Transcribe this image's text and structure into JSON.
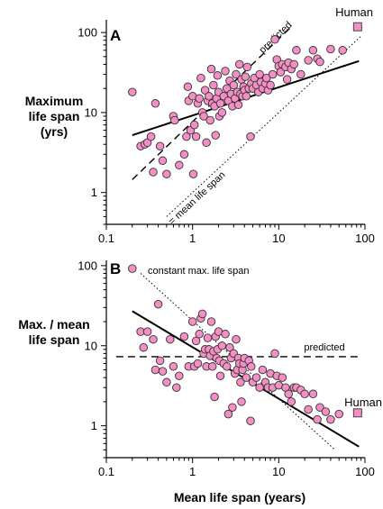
{
  "chart_data": [
    {
      "panel": "A",
      "type": "scatter",
      "xlabel": "",
      "ylabel_lines": [
        "Maximum",
        "life span",
        "(yrs)"
      ],
      "x_scale": "log",
      "y_scale": "log",
      "xlim": [
        0.1,
        100
      ],
      "ylim": [
        0.4,
        130
      ],
      "x_ticks": [
        {
          "value": 0.1,
          "label": "0.1"
        },
        {
          "value": 1,
          "label": "1"
        },
        {
          "value": 10,
          "label": "10"
        },
        {
          "value": 100,
          "label": "100"
        }
      ],
      "y_ticks": [
        {
          "value": 1,
          "label": "1"
        },
        {
          "value": 10,
          "label": "10"
        },
        {
          "value": 100,
          "label": "100"
        }
      ],
      "points": [
        [
          0.2,
          18
        ],
        [
          0.25,
          3.8
        ],
        [
          0.28,
          4
        ],
        [
          0.3,
          4.2
        ],
        [
          0.33,
          5
        ],
        [
          0.35,
          1.8
        ],
        [
          0.37,
          13
        ],
        [
          0.42,
          3.8
        ],
        [
          0.45,
          2.5
        ],
        [
          0.5,
          1.7
        ],
        [
          0.6,
          9
        ],
        [
          0.62,
          8
        ],
        [
          0.7,
          2.2
        ],
        [
          0.8,
          3
        ],
        [
          0.85,
          5
        ],
        [
          0.88,
          21
        ],
        [
          0.9,
          14
        ],
        [
          0.95,
          6
        ],
        [
          1,
          16
        ],
        [
          1.02,
          1.7
        ],
        [
          1.05,
          7
        ],
        [
          1.1,
          5
        ],
        [
          1.15,
          13
        ],
        [
          1.2,
          15
        ],
        [
          1.25,
          27
        ],
        [
          1.3,
          10
        ],
        [
          1.35,
          9
        ],
        [
          1.4,
          19
        ],
        [
          1.45,
          4.2
        ],
        [
          1.5,
          14
        ],
        [
          1.55,
          16
        ],
        [
          1.6,
          8
        ],
        [
          1.65,
          35
        ],
        [
          1.7,
          13
        ],
        [
          1.75,
          22
        ],
        [
          1.8,
          12
        ],
        [
          1.85,
          5.2
        ],
        [
          1.9,
          15
        ],
        [
          1.95,
          29
        ],
        [
          2,
          18
        ],
        [
          2.05,
          9
        ],
        [
          2.1,
          13
        ],
        [
          2.2,
          10
        ],
        [
          2.3,
          16
        ],
        [
          2.4,
          33
        ],
        [
          2.5,
          20
        ],
        [
          2.6,
          14
        ],
        [
          2.7,
          25
        ],
        [
          2.8,
          17
        ],
        [
          2.9,
          12
        ],
        [
          3,
          22
        ],
        [
          3.1,
          15
        ],
        [
          3.2,
          30
        ],
        [
          3.3,
          18
        ],
        [
          3.4,
          12.5
        ],
        [
          3.5,
          40
        ],
        [
          3.6,
          17
        ],
        [
          3.7,
          26
        ],
        [
          3.8,
          16
        ],
        [
          3.9,
          21
        ],
        [
          4,
          19
        ],
        [
          4.1,
          28
        ],
        [
          4.2,
          16
        ],
        [
          4.3,
          37
        ],
        [
          4.5,
          20
        ],
        [
          4.7,
          5
        ],
        [
          4.8,
          23
        ],
        [
          5,
          20
        ],
        [
          5.2,
          27
        ],
        [
          5.5,
          22
        ],
        [
          5.8,
          18
        ],
        [
          6,
          30
        ],
        [
          6.2,
          24
        ],
        [
          6.5,
          20
        ],
        [
          7,
          23
        ],
        [
          7.2,
          27
        ],
        [
          7.5,
          19
        ],
        [
          8,
          22
        ],
        [
          8.5,
          30
        ],
        [
          9,
          82
        ],
        [
          9.5,
          46
        ],
        [
          10,
          38
        ],
        [
          10.5,
          32
        ],
        [
          11,
          40
        ],
        [
          12,
          37
        ],
        [
          12.5,
          26
        ],
        [
          13,
          42
        ],
        [
          14,
          35
        ],
        [
          15,
          40
        ],
        [
          16,
          60
        ],
        [
          18,
          30
        ],
        [
          22,
          45
        ],
        [
          25,
          60
        ],
        [
          28,
          47
        ],
        [
          30,
          43
        ],
        [
          40,
          62
        ],
        [
          55,
          60
        ]
      ],
      "human": {
        "x": 82,
        "y": 118,
        "label": "Human"
      },
      "lines": [
        {
          "name": "fit",
          "style": "solid",
          "from": [
            0.2,
            5.2
          ],
          "to": [
            85,
            44
          ]
        },
        {
          "name": "predicted",
          "style": "dashed",
          "from": [
            0.2,
            1.45
          ],
          "to": [
            14,
            118
          ],
          "label": "predicted"
        },
        {
          "name": "mean-equals-max",
          "style": "dotted",
          "from": [
            0.5,
            0.5
          ],
          "to": [
            90,
            90
          ],
          "label": "= mean life span"
        }
      ]
    },
    {
      "panel": "B",
      "type": "scatter",
      "xlabel": "Mean life span (years)",
      "ylabel_lines": [
        "Max. / mean",
        "life span"
      ],
      "x_scale": "log",
      "y_scale": "log",
      "xlim": [
        0.1,
        100
      ],
      "ylim": [
        0.4,
        105
      ],
      "x_ticks": [
        {
          "value": 0.1,
          "label": "0.1"
        },
        {
          "value": 1,
          "label": "1"
        },
        {
          "value": 10,
          "label": "10"
        },
        {
          "value": 100,
          "label": "100"
        }
      ],
      "y_ticks": [
        {
          "value": 1,
          "label": "1"
        },
        {
          "value": 10,
          "label": "10"
        },
        {
          "value": 100,
          "label": "100"
        }
      ],
      "points": [
        [
          0.2,
          92
        ],
        [
          0.25,
          15
        ],
        [
          0.27,
          9.5
        ],
        [
          0.3,
          15
        ],
        [
          0.35,
          12
        ],
        [
          0.37,
          5
        ],
        [
          0.4,
          33
        ],
        [
          0.42,
          6.5
        ],
        [
          0.45,
          4.8
        ],
        [
          0.5,
          3.5
        ],
        [
          0.55,
          12
        ],
        [
          0.6,
          5.5
        ],
        [
          0.65,
          3
        ],
        [
          0.7,
          4.2
        ],
        [
          0.8,
          13
        ],
        [
          0.9,
          5.5
        ],
        [
          1,
          20
        ],
        [
          1.05,
          5.5
        ],
        [
          1.1,
          11.5
        ],
        [
          1.15,
          6
        ],
        [
          1.2,
          14
        ],
        [
          1.25,
          22
        ],
        [
          1.3,
          25
        ],
        [
          1.35,
          8
        ],
        [
          1.4,
          9
        ],
        [
          1.45,
          5.5
        ],
        [
          1.5,
          12.5
        ],
        [
          1.55,
          9
        ],
        [
          1.6,
          7.5
        ],
        [
          1.65,
          20
        ],
        [
          1.7,
          5.5
        ],
        [
          1.75,
          8.5
        ],
        [
          1.8,
          2.3
        ],
        [
          1.85,
          13
        ],
        [
          1.9,
          7
        ],
        [
          1.95,
          9
        ],
        [
          2,
          15
        ],
        [
          2.05,
          6.5
        ],
        [
          2.1,
          4.2
        ],
        [
          2.2,
          10
        ],
        [
          2.3,
          6
        ],
        [
          2.4,
          14
        ],
        [
          2.5,
          5.5
        ],
        [
          2.6,
          1.4
        ],
        [
          2.7,
          9.5
        ],
        [
          2.8,
          7
        ],
        [
          2.9,
          1.7
        ],
        [
          3,
          8
        ],
        [
          3.1,
          4.5
        ],
        [
          3.2,
          12
        ],
        [
          3.3,
          5
        ],
        [
          3.4,
          7
        ],
        [
          3.5,
          6
        ],
        [
          3.6,
          3.5
        ],
        [
          3.7,
          2
        ],
        [
          3.8,
          5
        ],
        [
          3.9,
          6
        ],
        [
          4,
          7
        ],
        [
          4.2,
          4
        ],
        [
          4.5,
          6.5
        ],
        [
          4.7,
          1.15
        ],
        [
          4.8,
          5.5
        ],
        [
          5,
          3.5
        ],
        [
          5.5,
          4
        ],
        [
          6,
          3
        ],
        [
          6.5,
          5
        ],
        [
          7,
          3.5
        ],
        [
          7.5,
          3
        ],
        [
          8,
          4.5
        ],
        [
          8.5,
          3
        ],
        [
          9,
          8
        ],
        [
          9.5,
          4.2
        ],
        [
          10,
          3.2
        ],
        [
          11,
          4
        ],
        [
          12,
          3
        ],
        [
          13,
          2.5
        ],
        [
          14,
          2
        ],
        [
          15,
          3
        ],
        [
          16,
          3
        ],
        [
          18,
          2.8
        ],
        [
          20,
          2.5
        ],
        [
          22,
          1.6
        ],
        [
          25,
          2.5
        ],
        [
          28,
          1.2
        ],
        [
          30,
          1.7
        ],
        [
          35,
          1.5
        ],
        [
          40,
          1.2
        ],
        [
          50,
          1.4
        ]
      ],
      "human": {
        "x": 82,
        "y": 1.45,
        "label": "Human"
      },
      "lines": [
        {
          "name": "fit",
          "style": "solid",
          "from": [
            0.2,
            27
          ],
          "to": [
            85,
            0.55
          ]
        },
        {
          "name": "predicted",
          "style": "dashed",
          "from": [
            0.13,
            7.3
          ],
          "to": [
            90,
            7.3
          ],
          "label": "predicted"
        },
        {
          "name": "constant-max-life-span",
          "style": "dotted",
          "from": [
            0.25,
            80
          ],
          "to": [
            45,
            0.5
          ],
          "label": "constant max. life span"
        }
      ]
    }
  ],
  "colors": {
    "point_fill": "#f48fc5",
    "point_stroke": "#333333",
    "line": "#000000"
  }
}
